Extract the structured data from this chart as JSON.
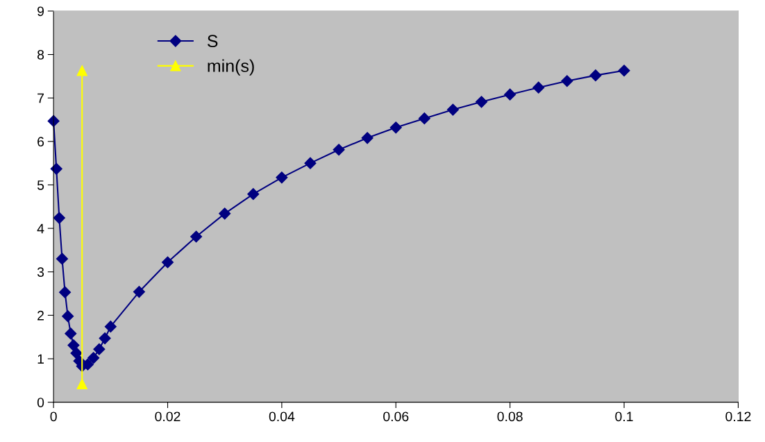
{
  "chart_data": {
    "type": "line",
    "xlim": [
      0,
      0.12
    ],
    "ylim": [
      0,
      9
    ],
    "xticks": [
      0,
      0.02,
      0.04,
      0.06,
      0.08,
      0.1,
      0.12
    ],
    "yticks": [
      0,
      1,
      2,
      3,
      4,
      5,
      6,
      7,
      8,
      9
    ],
    "grid": false,
    "legend": "top left",
    "series": [
      {
        "name": "S",
        "color": "#000080",
        "marker": "diamond",
        "x": [
          0,
          0.0005,
          0.001,
          0.0015,
          0.002,
          0.0025,
          0.003,
          0.0035,
          0.004,
          0.0045,
          0.005,
          0.006,
          0.007,
          0.008,
          0.009,
          0.01,
          0.015,
          0.02,
          0.025,
          0.03,
          0.035,
          0.04,
          0.045,
          0.05,
          0.055,
          0.06,
          0.065,
          0.07,
          0.075,
          0.08,
          0.085,
          0.09,
          0.095,
          0.1
        ],
        "values": [
          6.47,
          5.37,
          4.24,
          3.3,
          2.53,
          1.98,
          1.58,
          1.31,
          1.13,
          0.95,
          0.83,
          0.87,
          1.02,
          1.22,
          1.47,
          1.74,
          2.54,
          3.22,
          3.81,
          4.34,
          4.79,
          5.17,
          5.5,
          5.81,
          6.08,
          6.32,
          6.53,
          6.73,
          6.91,
          7.08,
          7.24,
          7.39,
          7.52,
          7.63
        ]
      },
      {
        "name": "min(s)",
        "color": "#ffff00",
        "marker": "triangle",
        "x": [
          0.005,
          0.005
        ],
        "values": [
          0.42,
          7.63
        ]
      }
    ]
  }
}
